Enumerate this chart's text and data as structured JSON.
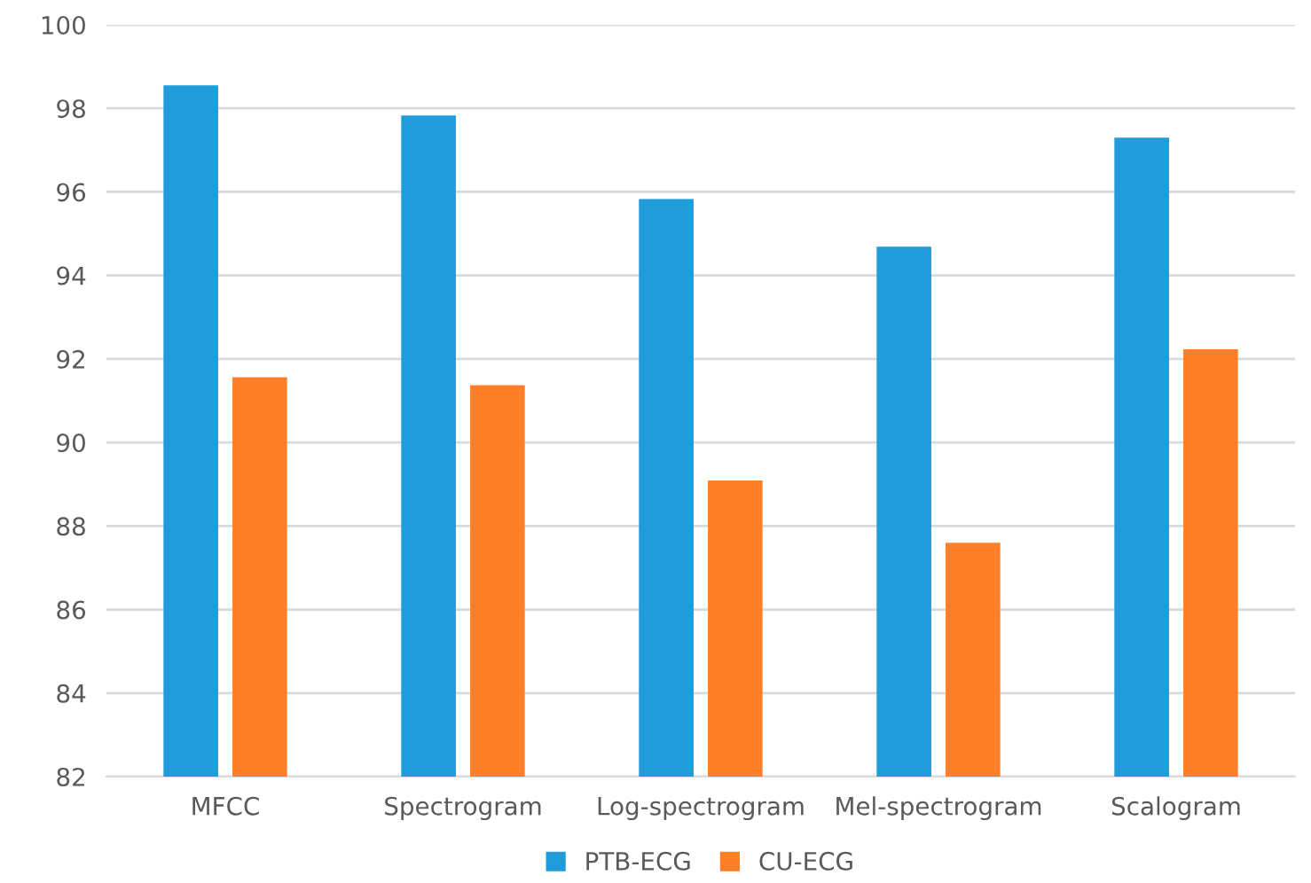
{
  "chart_data": {
    "type": "bar",
    "categories": [
      "MFCC",
      "Spectrogram",
      "Log-spectrogram",
      "Mel-spectrogram",
      "Scalogram"
    ],
    "series": [
      {
        "name": "PTB-ECG",
        "color": "#1f9cd9",
        "values": [
          98.55,
          97.83,
          95.83,
          94.69,
          97.3
        ]
      },
      {
        "name": "CU-ECG",
        "color": "#fe7f27",
        "values": [
          91.56,
          91.37,
          89.09,
          87.6,
          92.23
        ]
      }
    ],
    "ylim": [
      82,
      100
    ],
    "yticks": [
      82,
      84,
      86,
      88,
      90,
      92,
      94,
      96,
      98,
      100
    ],
    "grid": "y",
    "legend": "bottom"
  }
}
